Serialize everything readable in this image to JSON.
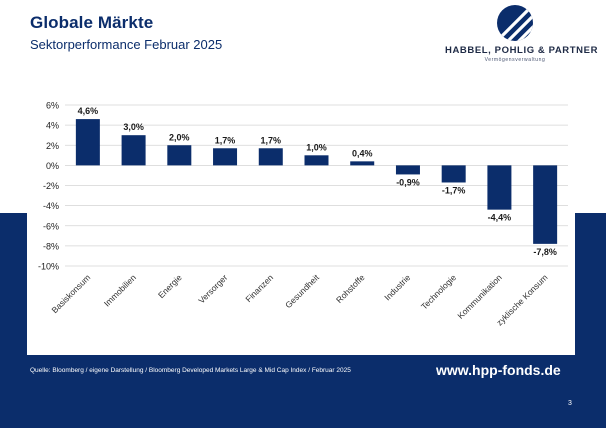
{
  "header": {
    "title": "Globale Märkte",
    "subtitle": "Sektorperformance Februar 2025"
  },
  "logo": {
    "name": "HABBEL, POHLIG & PARTNER",
    "tagline": "Vermögensverwaltung",
    "icon": "hpp-logo-icon"
  },
  "chart_data": {
    "type": "bar",
    "categories": [
      "Basiskonsum",
      "Immobilien",
      "Energie",
      "Versorger",
      "Finanzen",
      "Gesundheit",
      "Rohstoffe",
      "Industrie",
      "Technologie",
      "Kommunikation",
      "zyklische Konsum"
    ],
    "values": [
      4.6,
      3.0,
      2.0,
      1.7,
      1.7,
      1.0,
      0.4,
      -0.9,
      -1.7,
      -4.4,
      -7.8
    ],
    "value_labels": [
      "4,6%",
      "3,0%",
      "2,0%",
      "1,7%",
      "1,7%",
      "1,0%",
      "0,4%",
      "-0,9%",
      "-1,7%",
      "-4,4%",
      "-7,8%"
    ],
    "yticks": [
      6,
      4,
      2,
      0,
      -2,
      -4,
      -6,
      -8,
      -10
    ],
    "ytick_labels": [
      "6%",
      "4%",
      "2%",
      "0%",
      "-2%",
      "-4%",
      "-6%",
      "-8%",
      "-10%"
    ],
    "ylim": [
      -10,
      6
    ],
    "grid": true,
    "bar_color": "#0b2d6b",
    "gridline_color": "#d4d4d4"
  },
  "footer": {
    "source": "Quelle: Bloomberg / eigene Darstellung / Bloomberg Developed Markets Large & Mid Cap Index / Februar 2025",
    "website": "www.hpp-fonds.de",
    "page_number": "3"
  },
  "colors": {
    "navy": "#0b2d6b",
    "white": "#ffffff"
  }
}
